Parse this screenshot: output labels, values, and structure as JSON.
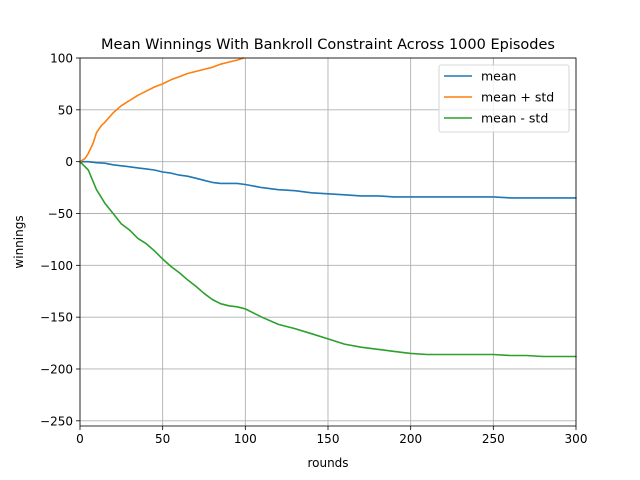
{
  "chart_data": {
    "type": "line",
    "title": "Mean Winnings With Bankroll Constraint Across 1000 Episodes",
    "xlabel": "rounds",
    "ylabel": "winnings",
    "xlim": [
      0,
      300
    ],
    "ylim": [
      -255,
      100
    ],
    "xticks": [
      0,
      50,
      100,
      150,
      200,
      250,
      300
    ],
    "yticks": [
      100,
      50,
      0,
      -50,
      -100,
      -150,
      -200,
      -250
    ],
    "grid": true,
    "legend_position": "top-right",
    "series": [
      {
        "name": "mean",
        "color": "#1f77b4",
        "x": [
          0,
          5,
          10,
          15,
          20,
          25,
          30,
          35,
          40,
          45,
          50,
          55,
          60,
          65,
          70,
          75,
          80,
          85,
          90,
          95,
          100,
          110,
          120,
          130,
          140,
          150,
          160,
          170,
          180,
          190,
          200,
          210,
          220,
          230,
          240,
          250,
          260,
          270,
          280,
          290,
          300
        ],
        "y": [
          0,
          0,
          -1,
          -1.5,
          -3,
          -4,
          -5,
          -6,
          -7,
          -8,
          -10,
          -11,
          -13,
          -14,
          -16,
          -18,
          -20,
          -21,
          -21,
          -21,
          -22,
          -25,
          -27,
          -28,
          -30,
          -31,
          -32,
          -33,
          -33,
          -34,
          -34,
          -34,
          -34,
          -34,
          -34,
          -34,
          -35,
          -35,
          -35,
          -35,
          -35
        ]
      },
      {
        "name": "mean + std",
        "color": "#ff7f0e",
        "x": [
          0,
          3,
          5,
          8,
          10,
          13,
          15,
          20,
          25,
          30,
          35,
          40,
          45,
          50,
          55,
          60,
          65,
          70,
          75,
          80,
          85,
          90,
          95,
          99
        ],
        "y": [
          0,
          3,
          8,
          18,
          28,
          35,
          38,
          47,
          54,
          59,
          64,
          68,
          72,
          75,
          79,
          82,
          85,
          87,
          89,
          91,
          94,
          96,
          98,
          100
        ]
      },
      {
        "name": "mean - std",
        "color": "#2ca02c",
        "x": [
          0,
          5,
          10,
          15,
          20,
          25,
          30,
          35,
          40,
          45,
          50,
          55,
          60,
          65,
          70,
          75,
          80,
          85,
          90,
          95,
          100,
          110,
          120,
          130,
          140,
          150,
          160,
          170,
          180,
          190,
          200,
          210,
          220,
          230,
          240,
          250,
          260,
          270,
          280,
          290,
          300
        ],
        "y": [
          0,
          -8,
          -27,
          -40,
          -50,
          -60,
          -66,
          -74,
          -79,
          -86,
          -94,
          -101,
          -107,
          -114,
          -120,
          -127,
          -133,
          -137,
          -139,
          -140,
          -142,
          -150,
          -157,
          -161,
          -166,
          -171,
          -176,
          -179,
          -181,
          -183,
          -185,
          -186,
          -186,
          -186,
          -186,
          -186,
          -187,
          -187,
          -188,
          -188,
          -188
        ]
      }
    ]
  }
}
